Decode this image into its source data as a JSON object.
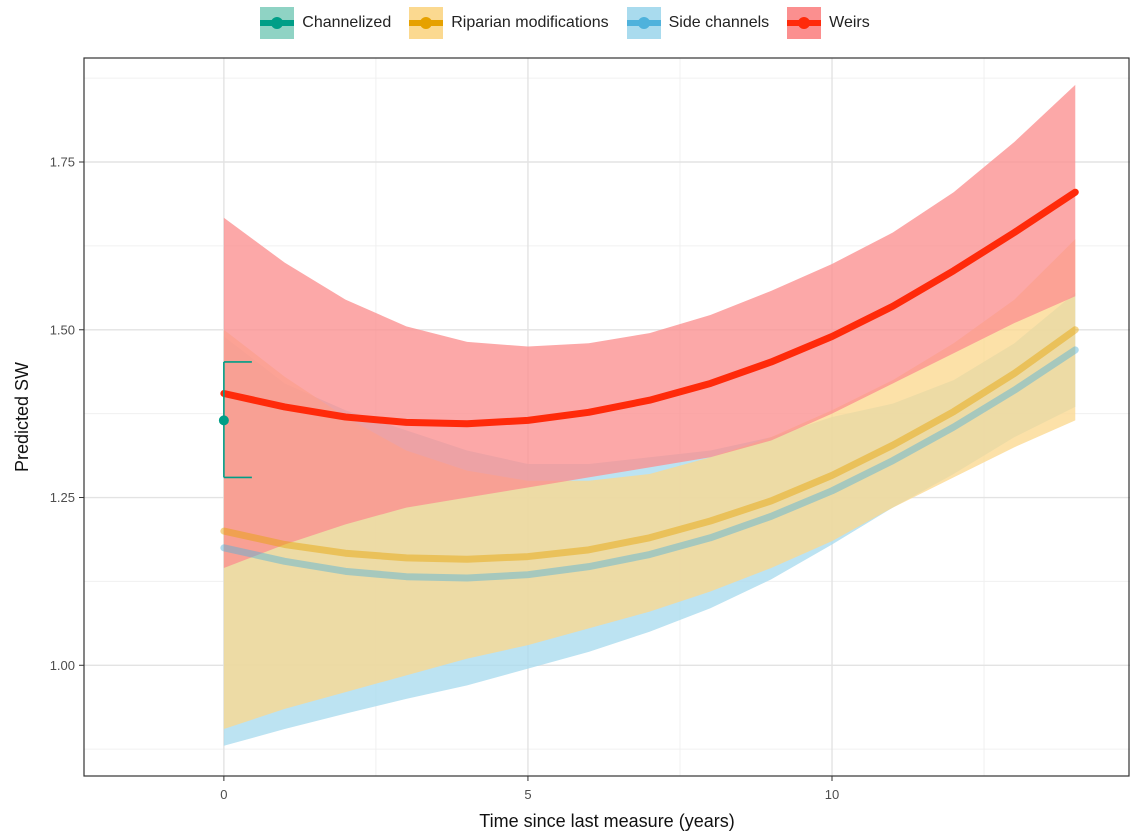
{
  "legend": {
    "items": [
      {
        "label": "Channelized",
        "fill": "#8fd3c4",
        "line": "#009e87"
      },
      {
        "label": "Riparian modifications",
        "fill": "#fbd990",
        "line": "#e6a100"
      },
      {
        "label": "Side channels",
        "fill": "#a9dbee",
        "line": "#4fb2dc"
      },
      {
        "label": "Weirs",
        "fill": "#fb8f8f",
        "line": "#ff2a0a"
      }
    ]
  },
  "chart_data": {
    "type": "line",
    "title": "",
    "xlabel": "Time since last measure (years)",
    "ylabel": "Predicted SW",
    "xlim": [
      -2.3,
      14.9
    ],
    "ylim": [
      0.835,
      1.905
    ],
    "x_ticks": [
      0,
      5,
      10
    ],
    "x_tick_labels": [
      "0",
      "5",
      "10"
    ],
    "y_ticks": [
      1.0,
      1.25,
      1.5,
      1.75
    ],
    "y_tick_labels": [
      "1.00",
      "1.25",
      "1.50",
      "1.75"
    ],
    "grid": true,
    "legend_position": "top",
    "x": [
      0,
      1,
      2,
      3,
      4,
      5,
      6,
      7,
      8,
      9,
      10,
      11,
      12,
      13,
      14
    ],
    "series": [
      {
        "name": "Side channels",
        "color": "#4fb2dc",
        "fill": "#a9dbee",
        "values": [
          1.175,
          1.155,
          1.14,
          1.132,
          1.13,
          1.135,
          1.147,
          1.165,
          1.19,
          1.222,
          1.26,
          1.305,
          1.355,
          1.41,
          1.47
        ],
        "lower": [
          0.88,
          0.905,
          0.928,
          0.95,
          0.97,
          0.995,
          1.02,
          1.05,
          1.085,
          1.128,
          1.18,
          1.235,
          1.285,
          1.34,
          1.385
        ],
        "upper": [
          1.49,
          1.42,
          1.38,
          1.35,
          1.32,
          1.3,
          1.3,
          1.31,
          1.32,
          1.34,
          1.37,
          1.39,
          1.425,
          1.48,
          1.555
        ]
      },
      {
        "name": "Riparian modifications",
        "color": "#e6a100",
        "fill": "#fbd990",
        "values": [
          1.2,
          1.18,
          1.167,
          1.16,
          1.158,
          1.162,
          1.172,
          1.19,
          1.215,
          1.245,
          1.283,
          1.328,
          1.378,
          1.435,
          1.5
        ],
        "lower": [
          0.905,
          0.935,
          0.96,
          0.985,
          1.01,
          1.03,
          1.055,
          1.08,
          1.11,
          1.145,
          1.185,
          1.235,
          1.28,
          1.325,
          1.365
        ],
        "upper": [
          1.5,
          1.43,
          1.37,
          1.32,
          1.29,
          1.275,
          1.275,
          1.285,
          1.31,
          1.34,
          1.38,
          1.425,
          1.48,
          1.545,
          1.635
        ]
      },
      {
        "name": "Weirs",
        "color": "#ff2a0a",
        "fill": "#fb8f8f",
        "values": [
          1.405,
          1.385,
          1.37,
          1.362,
          1.36,
          1.365,
          1.377,
          1.395,
          1.42,
          1.452,
          1.49,
          1.535,
          1.588,
          1.645,
          1.705
        ],
        "lower": [
          1.145,
          1.18,
          1.21,
          1.235,
          1.25,
          1.265,
          1.28,
          1.295,
          1.31,
          1.335,
          1.375,
          1.42,
          1.465,
          1.51,
          1.55
        ],
        "upper": [
          1.667,
          1.6,
          1.545,
          1.505,
          1.482,
          1.475,
          1.48,
          1.495,
          1.522,
          1.558,
          1.598,
          1.645,
          1.705,
          1.78,
          1.865
        ]
      },
      {
        "name": "Channelized",
        "color": "#009e87",
        "point": {
          "x": 0,
          "y": 1.365,
          "lower": 1.28,
          "upper": 1.452
        }
      }
    ]
  }
}
